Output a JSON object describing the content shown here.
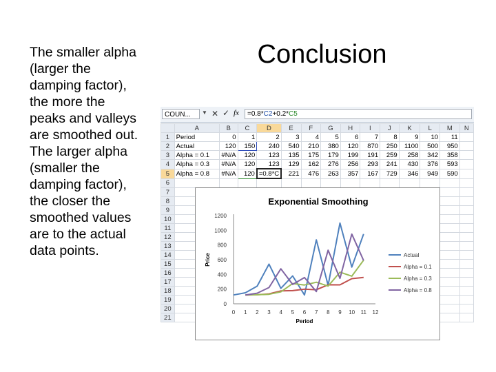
{
  "slide": {
    "title": "Conclusion",
    "body": "The smaller alpha (larger the damping factor), the more the peaks and valleys are smoothed out. The larger alpha (smaller the damping factor), the closer the smoothed values are to the actual data points."
  },
  "excel": {
    "name_box": "COUN...",
    "formula_prefix": "=0.8*",
    "formula_ref1": "C2",
    "formula_mid": "+0.2*",
    "formula_ref2": "C5",
    "column_headers": [
      "A",
      "B",
      "C",
      "D",
      "E",
      "F",
      "G",
      "H",
      "I",
      "J",
      "K",
      "L",
      "M",
      "N"
    ],
    "rows": [
      {
        "num": "1",
        "cells": [
          "Period",
          "0",
          "1",
          "2",
          "3",
          "4",
          "5",
          "6",
          "7",
          "8",
          "9",
          "10",
          "11",
          ""
        ]
      },
      {
        "num": "2",
        "cells": [
          "Actual",
          "120",
          "150",
          "240",
          "540",
          "210",
          "380",
          "120",
          "870",
          "250",
          "1100",
          "500",
          "950",
          ""
        ]
      },
      {
        "num": "3",
        "cells": [
          "Alpha = 0.1",
          "#N/A",
          "120",
          "123",
          "135",
          "175",
          "179",
          "199",
          "191",
          "259",
          "258",
          "342",
          "358",
          ""
        ]
      },
      {
        "num": "4",
        "cells": [
          "Alpha = 0.3",
          "#N/A",
          "120",
          "123",
          "129",
          "162",
          "276",
          "256",
          "293",
          "241",
          "430",
          "376",
          "593",
          ""
        ]
      },
      {
        "num": "5",
        "cells": [
          "Alpha = 0.8",
          "#N/A",
          "120",
          "=0.8*C",
          "221",
          "476",
          "263",
          "357",
          "167",
          "729",
          "346",
          "949",
          "590",
          ""
        ]
      },
      {
        "num": "6",
        "cells": []
      },
      {
        "num": "7",
        "cells": []
      },
      {
        "num": "8",
        "cells": []
      },
      {
        "num": "9",
        "cells": []
      },
      {
        "num": "10",
        "cells": []
      },
      {
        "num": "11",
        "cells": []
      },
      {
        "num": "12",
        "cells": []
      },
      {
        "num": "13",
        "cells": []
      },
      {
        "num": "14",
        "cells": []
      },
      {
        "num": "15",
        "cells": []
      },
      {
        "num": "16",
        "cells": []
      },
      {
        "num": "17",
        "cells": []
      },
      {
        "num": "18",
        "cells": []
      },
      {
        "num": "19",
        "cells": []
      },
      {
        "num": "20",
        "cells": []
      },
      {
        "num": "21",
        "cells": []
      }
    ]
  },
  "chart_data": {
    "type": "line",
    "title": "Exponential Smoothing",
    "xlabel": "Period",
    "ylabel": "Price",
    "x": [
      0,
      1,
      2,
      3,
      4,
      5,
      6,
      7,
      8,
      9,
      10,
      11
    ],
    "xlim": [
      0,
      12
    ],
    "xticks": [
      "0",
      "1",
      "2",
      "3",
      "4",
      "5",
      "6",
      "7",
      "8",
      "9",
      "10",
      "11",
      "12"
    ],
    "ylim": [
      0,
      1200
    ],
    "yticks": [
      "0",
      "200",
      "400",
      "600",
      "800",
      "1000",
      "1200"
    ],
    "legend_position": "right",
    "series": [
      {
        "name": "Actual",
        "color": "#4f81bd",
        "values": [
          120,
          150,
          240,
          540,
          210,
          380,
          120,
          870,
          250,
          1100,
          500,
          950
        ]
      },
      {
        "name": "Alpha = 0.1",
        "color": "#c0504d",
        "values": [
          null,
          120,
          123,
          135,
          175,
          179,
          199,
          191,
          259,
          258,
          342,
          358
        ]
      },
      {
        "name": "Alpha = 0.3",
        "color": "#9bbb59",
        "values": [
          null,
          120,
          123,
          129,
          162,
          276,
          256,
          293,
          241,
          430,
          376,
          593
        ]
      },
      {
        "name": "Alpha = 0.8",
        "color": "#8064a2",
        "values": [
          null,
          120,
          144,
          221,
          476,
          263,
          357,
          167,
          729,
          346,
          949,
          590
        ]
      }
    ]
  }
}
